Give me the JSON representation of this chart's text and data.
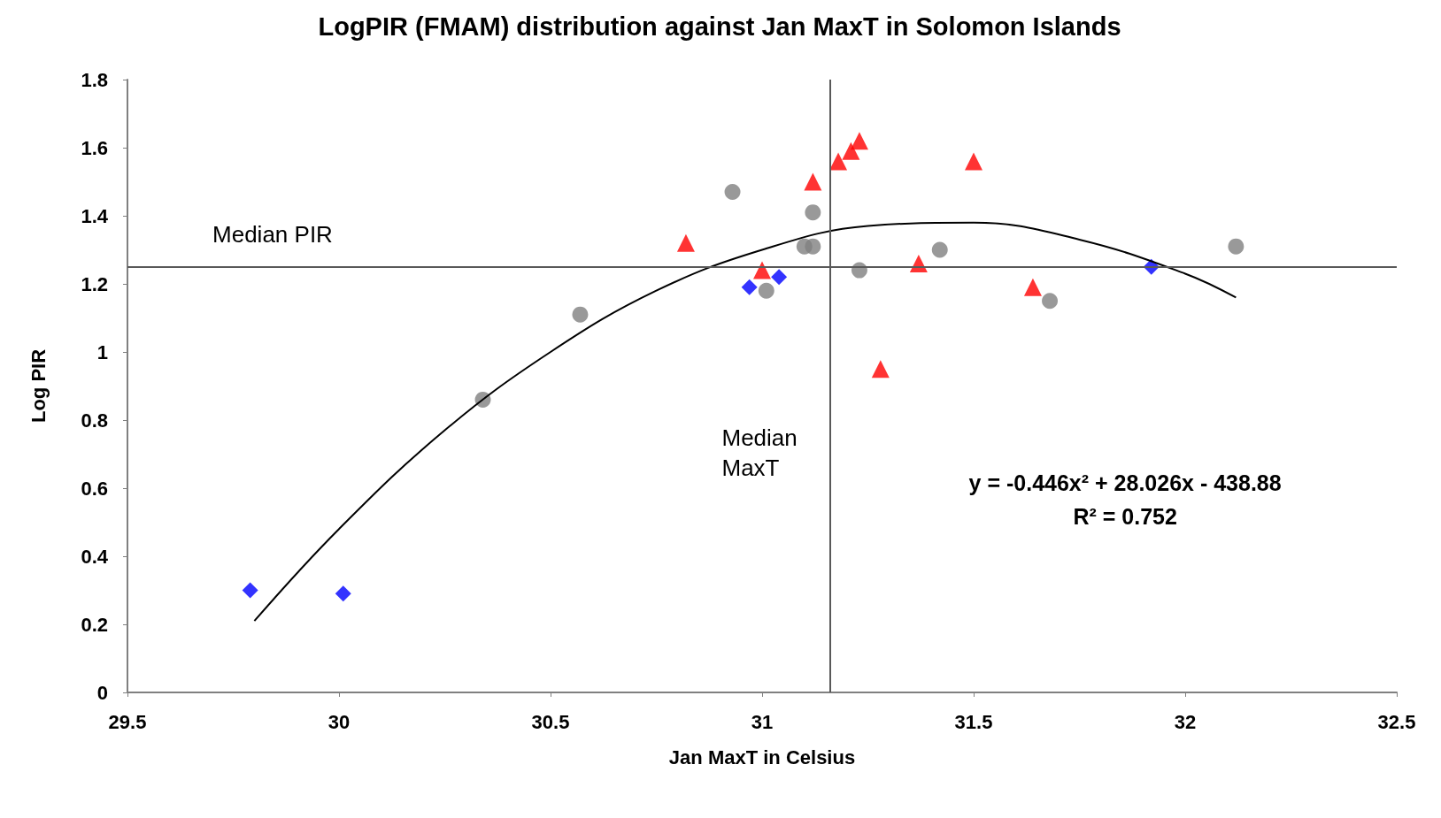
{
  "chart_data": {
    "type": "scatter",
    "title": "LogPIR (FMAM) distribution against Jan MaxT in Solomon Islands",
    "xlabel": "Jan MaxT in Celsius",
    "ylabel": "Log PIR",
    "xlim": [
      29.5,
      32.5
    ],
    "xticks": [
      29.5,
      30,
      30.5,
      31,
      31.5,
      32,
      32.5
    ],
    "ylim": [
      0,
      1.8
    ],
    "yticks": [
      0,
      0.2,
      0.4,
      0.6,
      0.8,
      1,
      1.2,
      1.4,
      1.6,
      1.8
    ],
    "grid": false,
    "series": [
      {
        "marker": "diamond",
        "color": "#0000ff",
        "x": [
          29.79,
          30.01,
          30.97,
          31.04,
          31.92
        ],
        "values": [
          0.3,
          0.29,
          1.19,
          1.22,
          1.25
        ]
      },
      {
        "marker": "triangle",
        "color": "#ff0000",
        "x": [
          30.82,
          31.0,
          31.12,
          31.18,
          31.21,
          31.23,
          31.5,
          31.37,
          31.64,
          31.28
        ],
        "values": [
          1.32,
          1.24,
          1.5,
          1.56,
          1.59,
          1.62,
          1.56,
          1.26,
          1.19,
          0.95
        ]
      },
      {
        "marker": "circle",
        "color": "#808080",
        "x": [
          30.34,
          30.57,
          30.93,
          31.12,
          31.1,
          31.12,
          31.01,
          31.23,
          31.42,
          31.68,
          32.12
        ],
        "values": [
          0.86,
          1.11,
          1.47,
          1.41,
          1.31,
          1.31,
          1.18,
          1.24,
          1.3,
          1.15,
          1.31
        ]
      },
      {
        "type": "line",
        "marker": "none",
        "color": "#000000",
        "x": [
          29.8,
          30,
          30.25,
          30.5,
          30.75,
          31,
          31.25,
          31.5,
          31.75,
          32,
          32.12
        ],
        "values": [
          0.21,
          0.48,
          0.77,
          1.0,
          1.18,
          1.3,
          1.37,
          1.38,
          1.33,
          1.23,
          1.16
        ]
      }
    ],
    "ref_lines": [
      {
        "axis": "y",
        "value": 1.25,
        "label": "Median PIR",
        "color": "#595959"
      },
      {
        "axis": "x",
        "value": 31.16,
        "label": "Median MaxT",
        "color": "#595959"
      }
    ],
    "annotations": [
      "y = -0.446x² + 28.026x - 438.88",
      "R² = 0.752"
    ]
  }
}
